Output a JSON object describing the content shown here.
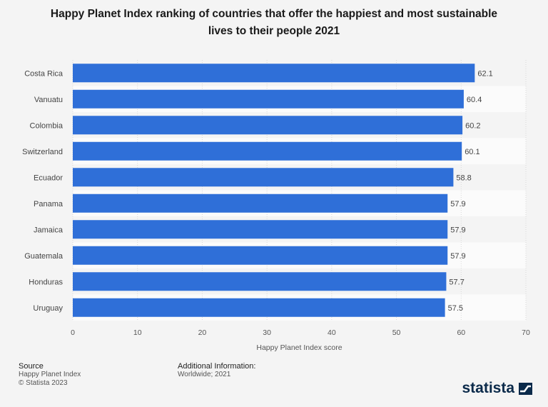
{
  "title_line1": "Happy Planet Index ranking of countries that offer the happiest and most sustainable",
  "title_line2": "lives to their people 2021",
  "chart_data": {
    "type": "bar",
    "orientation": "horizontal",
    "categories": [
      "Costa Rica",
      "Vanuatu",
      "Colombia",
      "Switzerland",
      "Ecuador",
      "Panama",
      "Jamaica",
      "Guatemala",
      "Honduras",
      "Uruguay"
    ],
    "values": [
      62.1,
      60.4,
      60.2,
      60.1,
      58.8,
      57.9,
      57.9,
      57.9,
      57.7,
      57.5
    ],
    "value_labels": [
      "62.1",
      "60.4",
      "60.2",
      "60.1",
      "58.8",
      "57.9",
      "57.9",
      "57.9",
      "57.7",
      "57.5"
    ],
    "xlabel": "Happy Planet Index score",
    "xlim": [
      0,
      70
    ],
    "xticks": [
      0,
      10,
      20,
      30,
      40,
      50,
      60,
      70
    ],
    "bar_color": "#2f6fd8",
    "grid": true
  },
  "footer": {
    "source_heading": "Source",
    "source_line1": "Happy Planet Index",
    "source_line2": "© Statista 2023",
    "info_heading": "Additional Information:",
    "info_line1": "Worldwide; 2021"
  },
  "brand": {
    "name": "statista",
    "icon": "statista-logo-icon"
  }
}
